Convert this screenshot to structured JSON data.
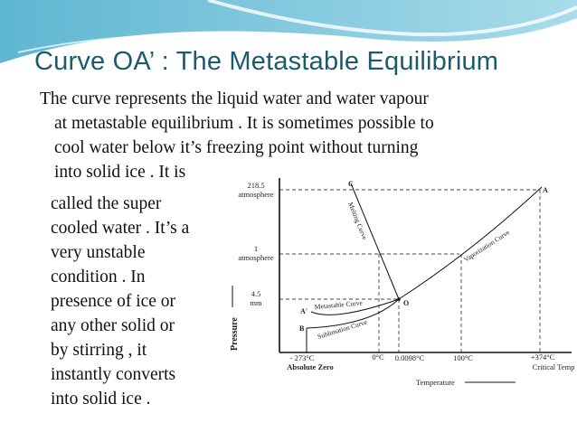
{
  "title": "Curve OA’ : The Metastable Equilibrium",
  "body_lines": [
    "The curve represents  the liquid water and water  vapour",
    "at metastable equilibrium . It is sometimes possible to",
    "cool water  below it’s freezing point without turning",
    "into solid ice . It is",
    "called the super",
    "cooled water . It’s a",
    "very unstable",
    "condition . In",
    "presence of ice or",
    "any other solid or",
    "by stirring , it",
    "instantly converts",
    "into solid ice ."
  ],
  "diagram": {
    "y_labels": {
      "p1a": "218.5",
      "p1b": "atmosphere",
      "p2a": "1",
      "p2b": "atmosphere",
      "p3a": "4.5",
      "p3b": "mm"
    },
    "y_axis": "Pressure",
    "x_axis": "Temperature",
    "x_labels": {
      "t1": "- 273°C",
      "t1b": "Absolute Zero",
      "t2": "0°C",
      "t3": "0.0098°C",
      "t4": "100°C",
      "t5": "+374°C",
      "t5b": "Critical Temp"
    },
    "points": {
      "C": "C",
      "A": "A",
      "O": "O",
      "Aprime": "A'",
      "B": "B"
    },
    "curves": {
      "melting": "Melting Curve",
      "vaporization": "Vaporization Curve",
      "metastable": "Metastable Curve",
      "sublimation": "Sublimation Curve"
    }
  },
  "colors": {
    "title": "#1c5a6e",
    "wave": "#7cc4dc"
  }
}
